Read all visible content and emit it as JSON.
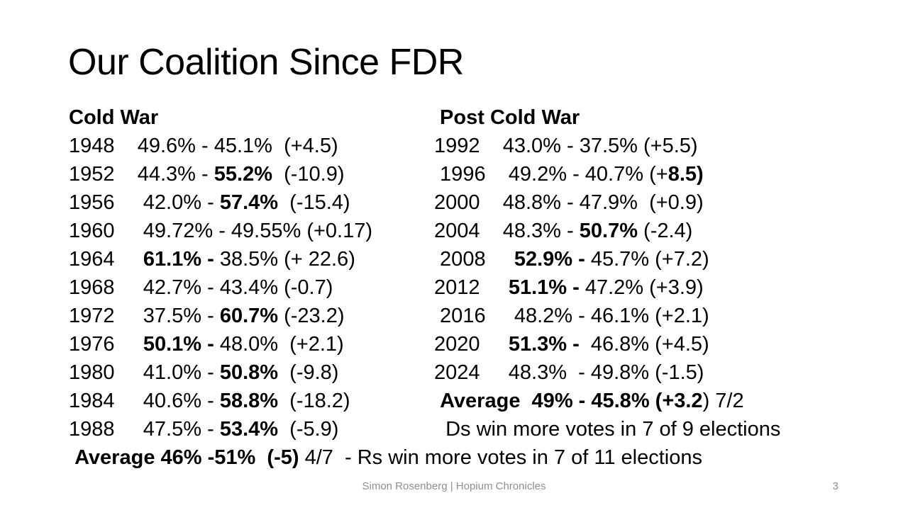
{
  "slide": {
    "title": "Our Coalition Since FDR",
    "columns": [
      {
        "id": "cold-war",
        "header": "Cold War",
        "lines": [
          [
            {
              "text": "Cold War",
              "bold": true
            }
          ],
          [
            {
              "text": "1948    49.6% - 45.1%  (+4.5)",
              "bold": false
            }
          ],
          [
            {
              "text": "1952    44.3% - ",
              "bold": false
            },
            {
              "text": "55.2%",
              "bold": true
            },
            {
              "text": "  (-10.9)",
              "bold": false
            }
          ],
          [
            {
              "text": "1956     42.0% - ",
              "bold": false
            },
            {
              "text": "57.4%",
              "bold": true
            },
            {
              "text": "  (-15.4)",
              "bold": false
            }
          ],
          [
            {
              "text": "1960     49.72% - 49.55% (+0.17)",
              "bold": false
            }
          ],
          [
            {
              "text": "1964     ",
              "bold": false
            },
            {
              "text": "61.1% - ",
              "bold": true
            },
            {
              "text": "38.5% (+ 22.6)",
              "bold": false
            }
          ],
          [
            {
              "text": "1968     42.7% - 43.4% (-0.7)",
              "bold": false
            }
          ],
          [
            {
              "text": "1972     37.5% - ",
              "bold": false
            },
            {
              "text": "60.7%",
              "bold": true
            },
            {
              "text": " (-23.2)",
              "bold": false
            }
          ],
          [
            {
              "text": "1976     ",
              "bold": false
            },
            {
              "text": "50.1% - ",
              "bold": true
            },
            {
              "text": "48.0%  (+2.1)",
              "bold": false
            }
          ],
          [
            {
              "text": "1980     41.0% - ",
              "bold": false
            },
            {
              "text": "50.8%",
              "bold": true
            },
            {
              "text": "  (-9.8)",
              "bold": false
            }
          ],
          [
            {
              "text": "1984     40.6% - ",
              "bold": false
            },
            {
              "text": "58.8%",
              "bold": true
            },
            {
              "text": "  (-18.2)",
              "bold": false
            }
          ],
          [
            {
              "text": "1988     47.5% - ",
              "bold": false
            },
            {
              "text": "53.4%",
              "bold": true
            },
            {
              "text": "  (-5.9)",
              "bold": false
            }
          ],
          [
            {
              "text": " ",
              "bold": false
            },
            {
              "text": "Average 46% -51%  (-5)",
              "bold": true
            },
            {
              "text": " 4/7  - Rs win more votes in 7 of 11 elections",
              "bold": false
            }
          ]
        ]
      },
      {
        "id": "post-cold-war",
        "header": "Post Cold War",
        "lines": [
          [
            {
              "text": " Post Cold War",
              "bold": true
            }
          ],
          [
            {
              "text": "1992    43.0% - 37.5% (+5.5)",
              "bold": false
            }
          ],
          [
            {
              "text": " 1996    49.2% - 40.7% (+",
              "bold": false
            },
            {
              "text": "8.5)",
              "bold": true
            }
          ],
          [
            {
              "text": "2000    48.8% - 47.9%  (+0.9)",
              "bold": false
            }
          ],
          [
            {
              "text": "2004    48.3% - ",
              "bold": false
            },
            {
              "text": "50.7%",
              "bold": true
            },
            {
              "text": " (-2.4)",
              "bold": false
            }
          ],
          [
            {
              "text": " 2008     ",
              "bold": false
            },
            {
              "text": "52.9% - ",
              "bold": true
            },
            {
              "text": "45.7% (+7.2)",
              "bold": false
            }
          ],
          [
            {
              "text": "2012     ",
              "bold": false
            },
            {
              "text": "51.1% - ",
              "bold": true
            },
            {
              "text": "47.2% (+3.9)",
              "bold": false
            }
          ],
          [
            {
              "text": " 2016     48.2% - 46.1% (+2.1)",
              "bold": false
            }
          ],
          [
            {
              "text": "2020     ",
              "bold": false
            },
            {
              "text": "51.3% - ",
              "bold": true
            },
            {
              "text": " 46.8% (+4.5)",
              "bold": false
            }
          ],
          [
            {
              "text": "2024     48.3%  - 49.8% (-1.5)",
              "bold": false
            }
          ],
          [
            {
              "text": " ",
              "bold": false
            },
            {
              "text": "Average  49% - 45.8% (+3.2",
              "bold": true
            },
            {
              "text": ") 7/2",
              "bold": false
            }
          ],
          [
            {
              "text": "  Ds win more votes in 7 of 9 elections",
              "bold": false
            }
          ]
        ]
      }
    ],
    "footer": {
      "credit": "Simon Rosenberg | Hopium Chronicles",
      "page_number": "3"
    }
  },
  "colors": {
    "text": "#000000",
    "footer_text": "#8f8f8f",
    "background": "#ffffff"
  }
}
